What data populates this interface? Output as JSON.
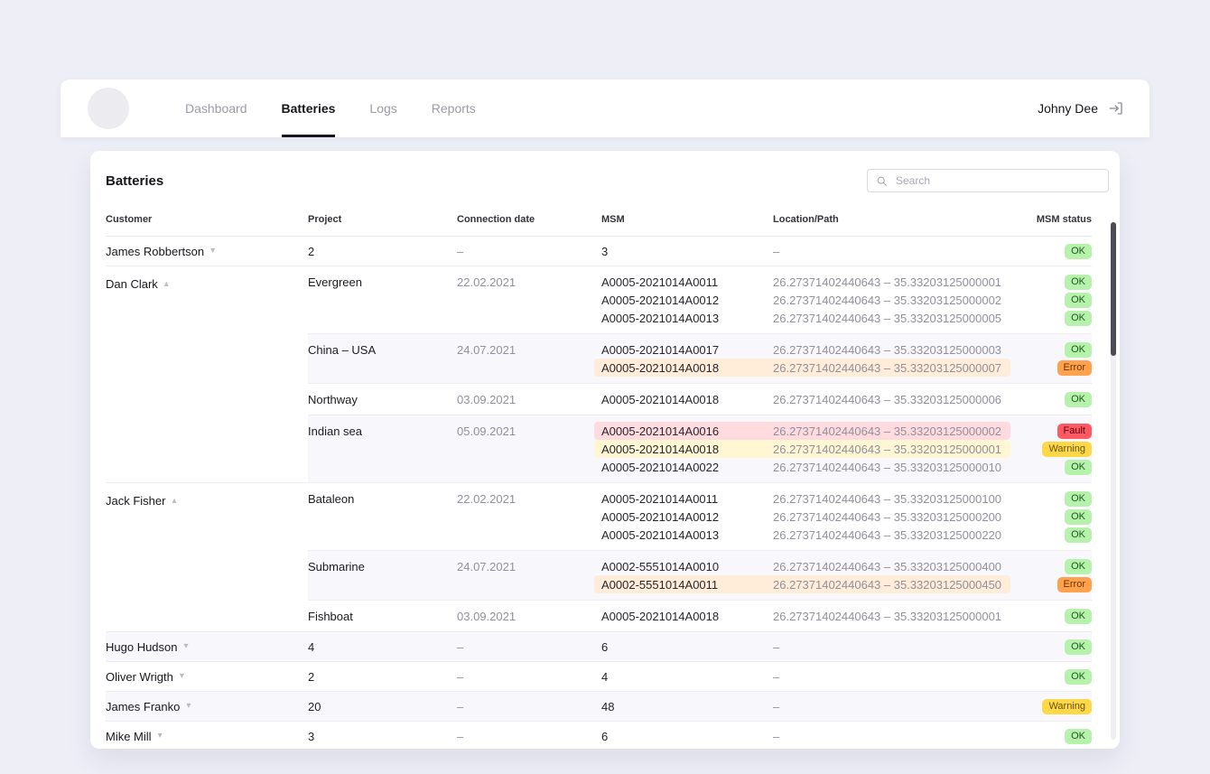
{
  "nav": {
    "items": [
      {
        "label": "Dashboard",
        "active": false
      },
      {
        "label": "Batteries",
        "active": true
      },
      {
        "label": "Logs",
        "active": false
      },
      {
        "label": "Reports",
        "active": false
      }
    ],
    "user": "Johny Dee"
  },
  "page": {
    "title": "Batteries",
    "search_placeholder": "Search"
  },
  "icons": {
    "chevron_down": "▾",
    "chevron_up": "▴"
  },
  "status_colors": {
    "OK": "#b6f2ab",
    "Error": "#ffa14d",
    "Fault": "#ff5964",
    "Warning": "#ffd84a"
  },
  "highlight_colors": {
    "Error": "#ffecd9",
    "Fault": "#ffdbe0",
    "Warning": "#fff6d4"
  },
  "table": {
    "headers": [
      "Customer",
      "Project",
      "Connection date",
      "MSM",
      "Location/Path",
      "MSM status"
    ],
    "groups": [
      {
        "customer": "James Robbertson",
        "expanded": false,
        "summary": {
          "project": "2",
          "date": "–",
          "msm": "3",
          "location": "–",
          "status": "OK"
        }
      },
      {
        "customer": "Dan Clark",
        "expanded": true,
        "projects": [
          {
            "name": "Evergreen",
            "date": "22.02.2021",
            "batteries": [
              {
                "msm": "A0005-2021014A0011",
                "location": "26.27371402440643 – 35.33203125000001",
                "status": "OK"
              },
              {
                "msm": "A0005-2021014A0012",
                "location": "26.27371402440643 – 35.33203125000002",
                "status": "OK"
              },
              {
                "msm": "A0005-2021014A0013",
                "location": "26.27371402440643 – 35.33203125000005",
                "status": "OK"
              }
            ]
          },
          {
            "name": "China – USA",
            "date": "24.07.2021",
            "batteries": [
              {
                "msm": "A0005-2021014A0017",
                "location": "26.27371402440643 – 35.33203125000003",
                "status": "OK"
              },
              {
                "msm": "A0005-2021014A0018",
                "location": "26.27371402440643 – 35.33203125000007",
                "status": "Error"
              }
            ]
          },
          {
            "name": "Northway",
            "date": "03.09.2021",
            "batteries": [
              {
                "msm": "A0005-2021014A0018",
                "location": "26.27371402440643 – 35.33203125000006",
                "status": "OK"
              }
            ]
          },
          {
            "name": "Indian sea",
            "date": "05.09.2021",
            "batteries": [
              {
                "msm": "A0005-2021014A0016",
                "location": "26.27371402440643 – 35.33203125000002",
                "status": "Fault"
              },
              {
                "msm": "A0005-2021014A0018",
                "location": "26.27371402440643 – 35.33203125000001",
                "status": "Warning"
              },
              {
                "msm": "A0005-2021014A0022",
                "location": "26.27371402440643 – 35.33203125000010",
                "status": "OK"
              }
            ]
          }
        ]
      },
      {
        "customer": "Jack Fisher",
        "expanded": true,
        "projects": [
          {
            "name": "Bataleon",
            "date": "22.02.2021",
            "batteries": [
              {
                "msm": "A0005-2021014A0011",
                "location": "26.27371402440643 – 35.33203125000100",
                "status": "OK"
              },
              {
                "msm": "A0005-2021014A0012",
                "location": "26.27371402440643 – 35.33203125000200",
                "status": "OK"
              },
              {
                "msm": "A0005-2021014A0013",
                "location": "26.27371402440643 – 35.33203125000220",
                "status": "OK"
              }
            ]
          },
          {
            "name": "Submarine",
            "date": "24.07.2021",
            "batteries": [
              {
                "msm": "A0002-5551014A0010",
                "location": "26.27371402440643 – 35.33203125000400",
                "status": "OK"
              },
              {
                "msm": "A0002-5551014A0011",
                "location": "26.27371402440643 – 35.33203125000450",
                "status": "Error"
              }
            ]
          },
          {
            "name": "Fishboat",
            "date": "03.09.2021",
            "batteries": [
              {
                "msm": "A0005-2021014A0018",
                "location": "26.27371402440643 – 35.33203125000001",
                "status": "OK"
              }
            ]
          }
        ]
      },
      {
        "customer": "Hugo Hudson",
        "expanded": false,
        "summary": {
          "project": "4",
          "date": "–",
          "msm": "6",
          "location": "–",
          "status": "OK"
        }
      },
      {
        "customer": "Oliver Wrigth",
        "expanded": false,
        "summary": {
          "project": "2",
          "date": "–",
          "msm": "4",
          "location": "–",
          "status": "OK"
        }
      },
      {
        "customer": "James Franko",
        "expanded": false,
        "summary": {
          "project": "20",
          "date": "–",
          "msm": "48",
          "location": "–",
          "status": "Warning"
        }
      },
      {
        "customer": "Mike Mill",
        "expanded": false,
        "summary": {
          "project": "3",
          "date": "–",
          "msm": "6",
          "location": "–",
          "status": "OK"
        }
      }
    ]
  }
}
